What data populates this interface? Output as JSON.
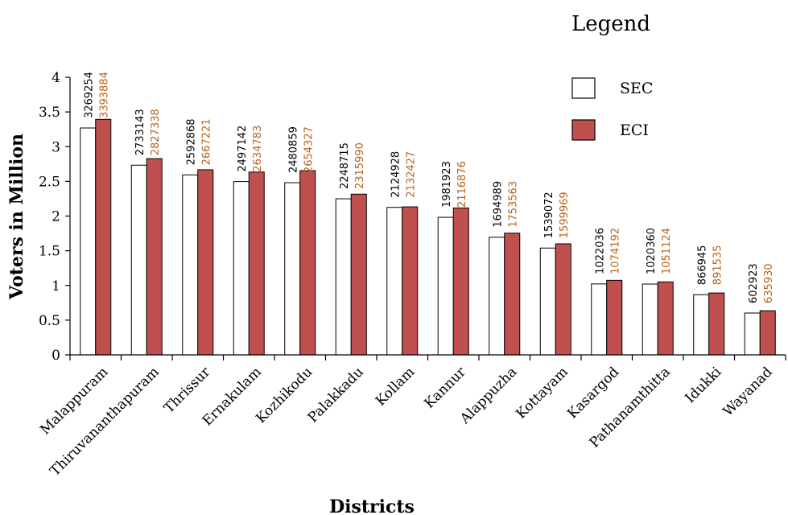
{
  "chart_data": {
    "type": "bar",
    "xlabel": "Districts",
    "ylabel": "Voters in Million",
    "ylim": [
      0,
      4
    ],
    "yticks": [
      "0",
      "0.5",
      "1",
      "1.5",
      "2",
      "2.5",
      "3",
      "3.5",
      "4"
    ],
    "legend_title": "Legend",
    "legend_position": "top-right",
    "categories": [
      "Malappuram",
      "Thiruvananthapuram",
      "Thrissur",
      "Ernakulam",
      "Kozhikodu",
      "Palakkadu",
      "Kollam",
      "Kannur",
      "Alappuzha",
      "Kottayam",
      "Kasargod",
      "Pathanamthitta",
      "Idukki",
      "Wayanad"
    ],
    "series": [
      {
        "name": "SEC",
        "fill": "#ffffff",
        "label_color": "#000000",
        "values": [
          3269254,
          2733143,
          2592868,
          2497142,
          2480859,
          2248715,
          2124928,
          1981923,
          1694989,
          1539072,
          1022036,
          1020360,
          866945,
          602923
        ],
        "labels": [
          "3269254",
          "2733143",
          "2592868",
          "2497142",
          "2480859",
          "2248715",
          "2124928",
          "1981923",
          "1694989",
          "1539072",
          "1022036",
          "1020360",
          "866945",
          "602923"
        ]
      },
      {
        "name": "ECI",
        "fill": "#c0504d",
        "label_color": "#b8621b",
        "values": [
          3393884,
          2827338,
          2667221,
          2634783,
          2654327,
          2315990,
          2132427,
          2116876,
          1753563,
          1599969,
          1074192,
          1051124,
          891535,
          635930
        ],
        "labels": [
          "3393884",
          "2827338",
          "2667221",
          "2634783",
          "2654327",
          "2315990",
          "2132427",
          "2116876",
          "1753563",
          "1599969",
          "1074192",
          "1051124",
          "891535",
          "635930"
        ]
      }
    ]
  }
}
